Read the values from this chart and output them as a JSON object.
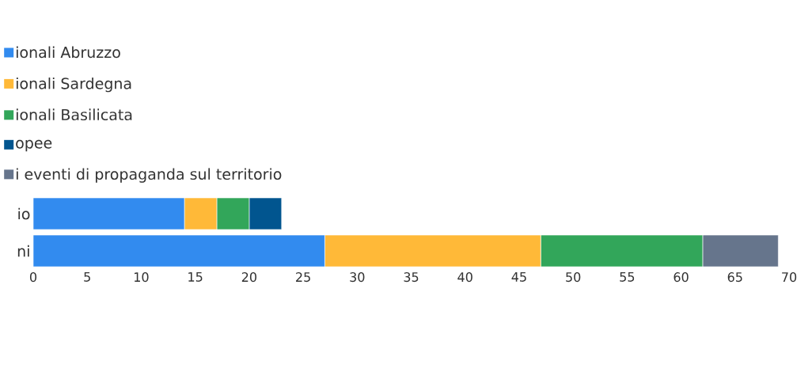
{
  "chart_data": {
    "type": "bar",
    "orientation": "horizontal",
    "stacked": true,
    "categories": [
      "io",
      "ni"
    ],
    "series": [
      {
        "name": "ionali Abruzzo",
        "color": "#328bef",
        "values": [
          14,
          27
        ]
      },
      {
        "name": "ionali Sardegna",
        "color": "#ffb938",
        "values": [
          3,
          20
        ]
      },
      {
        "name": "ionali Basilicata",
        "color": "#32a65a",
        "values": [
          3,
          15
        ]
      },
      {
        "name": "opee",
        "color": "#01558f",
        "values": [
          3,
          null
        ]
      },
      {
        "name": "i eventi di propaganda sul territorio",
        "color": "#66758c",
        "values": [
          null,
          7
        ]
      }
    ],
    "xlim": [
      0,
      70
    ],
    "xticks": [
      0,
      5,
      10,
      15,
      20,
      25,
      30,
      35,
      40,
      45,
      50,
      55,
      60,
      65,
      70
    ],
    "grid": false,
    "legend": "top left"
  }
}
